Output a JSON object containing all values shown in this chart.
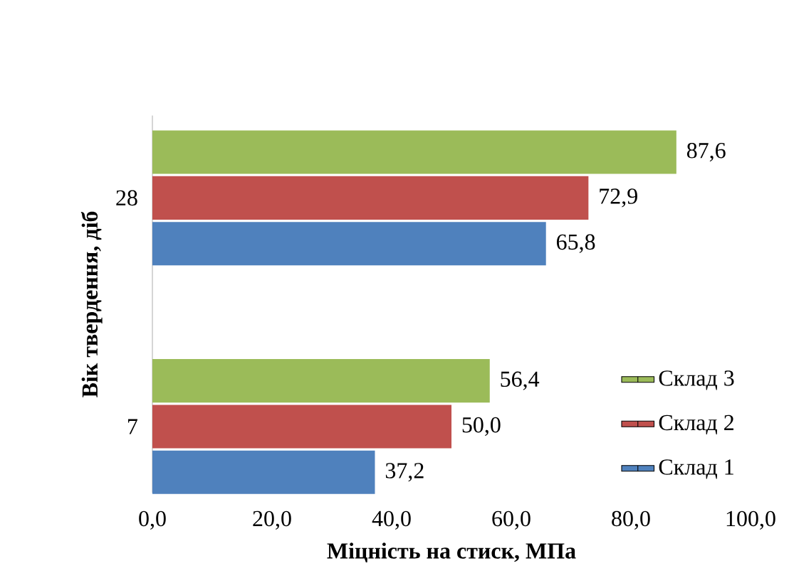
{
  "chart_data": {
    "type": "bar",
    "orientation": "horizontal",
    "xlabel": "Міцність на стиск, МПа",
    "ylabel": "Вік твердення, діб",
    "categories": [
      "28",
      "7"
    ],
    "series": [
      {
        "name": "Склад 1",
        "color": "#4f81bd",
        "values": [
          65.8,
          37.2
        ],
        "value_labels": [
          "65,8",
          "37,2"
        ]
      },
      {
        "name": "Склад 2",
        "color": "#c0504d",
        "values": [
          72.9,
          50.0
        ],
        "value_labels": [
          "72,9",
          "50,0"
        ]
      },
      {
        "name": "Склад 3",
        "color": "#9bbb59",
        "values": [
          87.6,
          56.4
        ],
        "value_labels": [
          "87,6",
          "56,4"
        ]
      }
    ],
    "xlim": [
      0,
      100
    ],
    "xticks": [
      {
        "value": 0,
        "label": "0,0"
      },
      {
        "value": 20,
        "label": "20,0"
      },
      {
        "value": 40,
        "label": "40,0"
      },
      {
        "value": 60,
        "label": "60,0"
      },
      {
        "value": 80,
        "label": "80,0"
      },
      {
        "value": 100,
        "label": "100,0"
      }
    ],
    "legend": "bottom right"
  }
}
